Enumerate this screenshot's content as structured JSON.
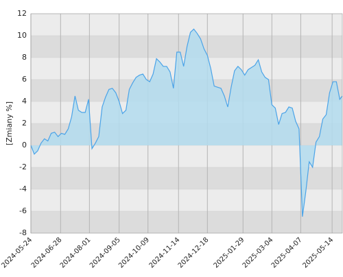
{
  "chart_data": {
    "type": "area",
    "ylabel": "[Zmiany %]",
    "x": [
      "2024-05-24",
      "2024-05-28",
      "2024-06-01",
      "2024-06-05",
      "2024-06-09",
      "2024-06-13",
      "2024-06-17",
      "2024-06-21",
      "2024-06-25",
      "2024-06-29",
      "2024-07-03",
      "2024-07-07",
      "2024-07-11",
      "2024-07-15",
      "2024-07-19",
      "2024-07-23",
      "2024-07-27",
      "2024-07-31",
      "2024-08-04",
      "2024-08-08",
      "2024-08-12",
      "2024-08-16",
      "2024-08-20",
      "2024-08-24",
      "2024-08-28",
      "2024-09-01",
      "2024-09-05",
      "2024-09-09",
      "2024-09-13",
      "2024-09-17",
      "2024-09-21",
      "2024-09-25",
      "2024-09-29",
      "2024-10-03",
      "2024-10-07",
      "2024-10-11",
      "2024-10-15",
      "2024-10-19",
      "2024-10-23",
      "2024-10-27",
      "2024-10-31",
      "2024-11-04",
      "2024-11-08",
      "2024-11-12",
      "2024-11-16",
      "2024-11-20",
      "2024-11-24",
      "2024-11-28",
      "2024-12-02",
      "2024-12-06",
      "2024-12-10",
      "2024-12-14",
      "2024-12-18",
      "2024-12-22",
      "2024-12-26",
      "2024-12-30",
      "2025-01-03",
      "2025-01-07",
      "2025-01-11",
      "2025-01-15",
      "2025-01-19",
      "2025-01-23",
      "2025-01-27",
      "2025-01-31",
      "2025-02-04",
      "2025-02-08",
      "2025-02-12",
      "2025-02-16",
      "2025-02-20",
      "2025-02-24",
      "2025-02-28",
      "2025-03-04",
      "2025-03-08",
      "2025-03-12",
      "2025-03-16",
      "2025-03-20",
      "2025-03-24",
      "2025-03-28",
      "2025-04-01",
      "2025-04-05",
      "2025-04-09",
      "2025-04-13",
      "2025-04-17",
      "2025-04-21",
      "2025-04-25",
      "2025-04-29",
      "2025-05-03",
      "2025-05-07",
      "2025-05-11",
      "2025-05-15",
      "2025-05-19",
      "2025-05-23",
      "2025-05-26"
    ],
    "values": [
      0,
      -0.8,
      -0.5,
      0.2,
      0.6,
      0.4,
      1.1,
      1.2,
      0.8,
      1.1,
      1.0,
      1.5,
      2.6,
      4.5,
      3.2,
      3.0,
      3.0,
      4.2,
      -0.3,
      0.2,
      0.8,
      3.5,
      4.4,
      5.1,
      5.2,
      4.8,
      4.0,
      2.9,
      3.2,
      5.1,
      5.7,
      6.2,
      6.4,
      6.5,
      6.0,
      5.8,
      6.5,
      7.9,
      7.6,
      7.2,
      7.2,
      6.7,
      5.2,
      8.5,
      8.5,
      7.2,
      9.0,
      10.3,
      10.6,
      10.2,
      9.7,
      8.8,
      8.2,
      7.0,
      5.4,
      5.3,
      5.2,
      4.5,
      3.5,
      5.3,
      6.8,
      7.2,
      6.9,
      6.4,
      6.9,
      7.1,
      7.3,
      7.8,
      6.7,
      6.2,
      6.0,
      3.7,
      3.4,
      1.9,
      2.9,
      3.0,
      3.5,
      3.4,
      2.2,
      1.5,
      -6.5,
      -4.2,
      -1.5,
      -2.0,
      0.3,
      0.8,
      2.4,
      2.8,
      4.8,
      5.8,
      5.8,
      4.2,
      4.5
    ],
    "color": "#4aa3e8",
    "fill_color": "#b3dcef",
    "xlim": [
      "2024-05-24",
      "2025-05-26"
    ],
    "xticks": [
      "2024-05-24",
      "2024-06-28",
      "2024-08-01",
      "2024-09-05",
      "2024-10-09",
      "2024-11-14",
      "2024-12-18",
      "2025-01-29",
      "2025-03-04",
      "2025-04-07",
      "2025-05-14"
    ],
    "ylim": [
      -8,
      12
    ],
    "yticks": [
      -8,
      -6,
      -4,
      -2,
      0,
      2,
      4,
      6,
      8,
      10,
      12
    ],
    "grid": true
  }
}
